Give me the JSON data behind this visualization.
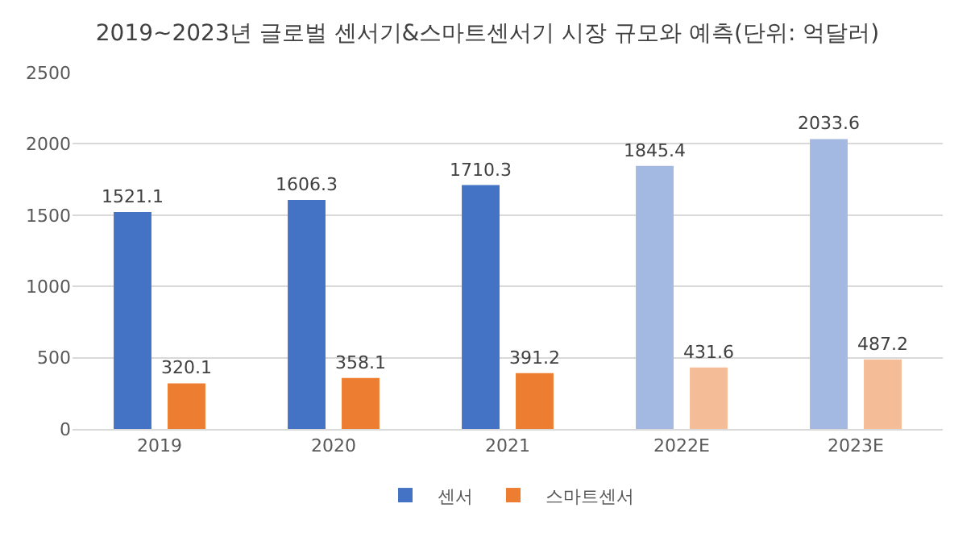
{
  "chart_data": {
    "type": "bar",
    "title": "2019~2023년 글로벌 센서기&스마트센서기 시장 규모와 예측(단위: 억달러)",
    "categories": [
      "2019",
      "2020",
      "2021",
      "2022E",
      "2023E"
    ],
    "series": [
      {
        "name": "센서",
        "color": "#4472c4",
        "colors": [
          "#4472c4",
          "#4472c4",
          "#4472c4",
          "#a3b9e2",
          "#a3b9e2"
        ],
        "values": [
          1521.1,
          1606.3,
          1710.3,
          1845.4,
          2033.6
        ]
      },
      {
        "name": "스마트센서",
        "color": "#ed7d31",
        "colors": [
          "#ed7d31",
          "#ed7d31",
          "#ed7d31",
          "#f4bd98",
          "#f4bd98"
        ],
        "values": [
          320.1,
          358.1,
          391.2,
          431.6,
          487.2
        ]
      }
    ],
    "ylim": [
      0,
      2500
    ],
    "yticks": [
      0,
      500,
      1000,
      1500,
      2000,
      2500
    ],
    "grid": "y",
    "legend": "bottom",
    "data_labels": true
  }
}
